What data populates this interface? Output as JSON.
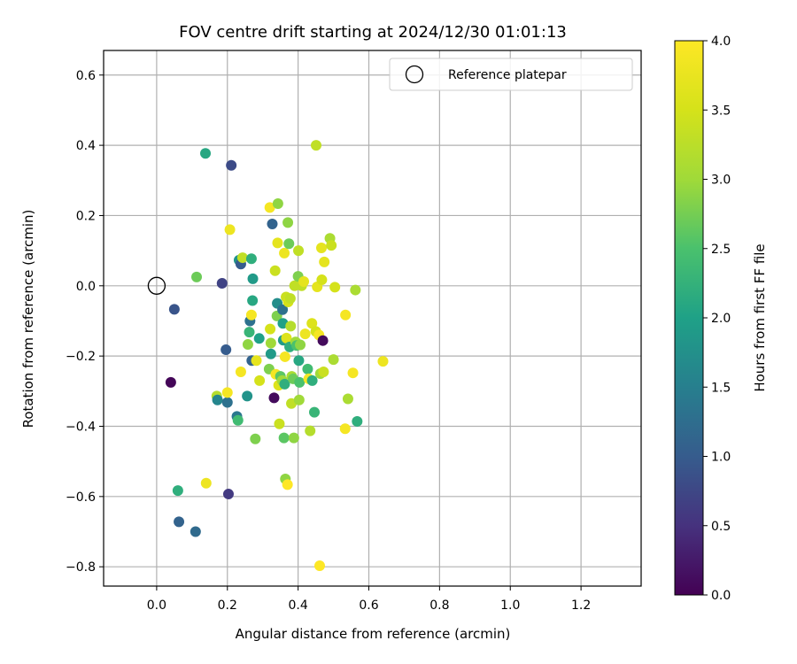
{
  "chart_data": {
    "type": "scatter",
    "title": "FOV centre drift starting at 2024/12/30 01:01:13",
    "xlabel": "Angular distance from reference (arcmin)",
    "ylabel": "Rotation from reference (arcmin)",
    "xlim": [
      -0.15,
      1.37
    ],
    "ylim": [
      -0.855,
      0.67
    ],
    "xticks": [
      0.0,
      0.2,
      0.4,
      0.6,
      0.8,
      1.0,
      1.2
    ],
    "xtick_labels": [
      "0.0",
      "0.2",
      "0.4",
      "0.6",
      "0.8",
      "1.0",
      "1.2"
    ],
    "yticks": [
      0.6,
      0.4,
      0.2,
      0.0,
      -0.2,
      -0.4,
      -0.6,
      -0.8
    ],
    "ytick_labels": [
      "0.6",
      "0.4",
      "0.2",
      "0.0",
      "−0.2",
      "−0.4",
      "−0.6",
      "−0.8"
    ],
    "grid": true,
    "legend": {
      "position": "upper right",
      "entries": [
        "Reference platepar"
      ]
    },
    "reference_point": {
      "x": 0.0,
      "y": 0.0,
      "label": "Reference platepar"
    },
    "colorbar": {
      "label": "Hours from first FF file",
      "range": [
        0.0,
        4.0
      ],
      "ticks": [
        0.0,
        0.5,
        1.0,
        1.5,
        2.0,
        2.5,
        3.0,
        3.5,
        4.0
      ],
      "tick_labels": [
        "0.0",
        "0.5",
        "1.0",
        "1.5",
        "2.0",
        "2.5",
        "3.0",
        "3.5",
        "4.0"
      ],
      "colormap": "viridis"
    },
    "points": [
      {
        "x": 0.04,
        "y": -0.275,
        "c": 0.05
      },
      {
        "x": 0.05,
        "y": -0.067,
        "c": 0.9
      },
      {
        "x": 0.06,
        "y": -0.583,
        "c": 2.2
      },
      {
        "x": 0.063,
        "y": -0.672,
        "c": 1.1
      },
      {
        "x": 0.11,
        "y": -0.7,
        "c": 1.2
      },
      {
        "x": 0.113,
        "y": 0.025,
        "c": 2.7
      },
      {
        "x": 0.138,
        "y": 0.377,
        "c": 2.1
      },
      {
        "x": 0.14,
        "y": -0.562,
        "c": 3.8
      },
      {
        "x": 0.17,
        "y": -0.314,
        "c": 3.2
      },
      {
        "x": 0.172,
        "y": -0.325,
        "c": 1.6
      },
      {
        "x": 0.185,
        "y": 0.007,
        "c": 0.7
      },
      {
        "x": 0.196,
        "y": -0.182,
        "c": 1.0
      },
      {
        "x": 0.2,
        "y": -0.332,
        "c": 1.3
      },
      {
        "x": 0.2,
        "y": -0.304,
        "c": 3.9
      },
      {
        "x": 0.203,
        "y": -0.593,
        "c": 0.6
      },
      {
        "x": 0.207,
        "y": 0.16,
        "c": 3.8
      },
      {
        "x": 0.211,
        "y": 0.343,
        "c": 0.8
      },
      {
        "x": 0.227,
        "y": -0.372,
        "c": 1.4
      },
      {
        "x": 0.23,
        "y": -0.383,
        "c": 2.4
      },
      {
        "x": 0.233,
        "y": 0.073,
        "c": 1.8
      },
      {
        "x": 0.238,
        "y": -0.245,
        "c": 3.9
      },
      {
        "x": 0.238,
        "y": 0.062,
        "c": 1.0
      },
      {
        "x": 0.243,
        "y": 0.08,
        "c": 3.3
      },
      {
        "x": 0.256,
        "y": -0.314,
        "c": 1.8
      },
      {
        "x": 0.258,
        "y": -0.167,
        "c": 2.9
      },
      {
        "x": 0.262,
        "y": -0.132,
        "c": 2.3
      },
      {
        "x": 0.264,
        "y": -0.1,
        "c": 1.3
      },
      {
        "x": 0.268,
        "y": 0.077,
        "c": 2.2
      },
      {
        "x": 0.268,
        "y": -0.083,
        "c": 3.9
      },
      {
        "x": 0.269,
        "y": -0.213,
        "c": 1.1
      },
      {
        "x": 0.271,
        "y": -0.042,
        "c": 2.1
      },
      {
        "x": 0.272,
        "y": 0.02,
        "c": 1.9
      },
      {
        "x": 0.279,
        "y": -0.436,
        "c": 2.8
      },
      {
        "x": 0.282,
        "y": -0.213,
        "c": 3.7
      },
      {
        "x": 0.29,
        "y": -0.15,
        "c": 2.0
      },
      {
        "x": 0.291,
        "y": -0.27,
        "c": 3.5
      },
      {
        "x": 0.318,
        "y": -0.237,
        "c": 2.8
      },
      {
        "x": 0.32,
        "y": 0.223,
        "c": 3.9
      },
      {
        "x": 0.321,
        "y": -0.123,
        "c": 3.5
      },
      {
        "x": 0.323,
        "y": -0.194,
        "c": 1.9
      },
      {
        "x": 0.323,
        "y": -0.163,
        "c": 3.0
      },
      {
        "x": 0.327,
        "y": 0.176,
        "c": 1.1
      },
      {
        "x": 0.332,
        "y": -0.319,
        "c": 0.1
      },
      {
        "x": 0.335,
        "y": 0.043,
        "c": 3.4
      },
      {
        "x": 0.337,
        "y": -0.252,
        "c": 3.9
      },
      {
        "x": 0.34,
        "y": -0.086,
        "c": 2.8
      },
      {
        "x": 0.341,
        "y": -0.05,
        "c": 1.7
      },
      {
        "x": 0.342,
        "y": 0.122,
        "c": 3.7
      },
      {
        "x": 0.343,
        "y": 0.234,
        "c": 2.9
      },
      {
        "x": 0.345,
        "y": -0.283,
        "c": 3.6
      },
      {
        "x": 0.347,
        "y": -0.393,
        "c": 3.4
      },
      {
        "x": 0.35,
        "y": -0.258,
        "c": 2.6
      },
      {
        "x": 0.355,
        "y": -0.27,
        "c": 3.0
      },
      {
        "x": 0.356,
        "y": -0.068,
        "c": 1.3
      },
      {
        "x": 0.357,
        "y": -0.107,
        "c": 2.0
      },
      {
        "x": 0.358,
        "y": -0.155,
        "c": 1.9
      },
      {
        "x": 0.36,
        "y": -0.433,
        "c": 2.6
      },
      {
        "x": 0.361,
        "y": 0.093,
        "c": 3.8
      },
      {
        "x": 0.362,
        "y": -0.28,
        "c": 2.2
      },
      {
        "x": 0.363,
        "y": -0.202,
        "c": 3.9
      },
      {
        "x": 0.364,
        "y": -0.55,
        "c": 2.9
      },
      {
        "x": 0.366,
        "y": -0.032,
        "c": 3.4
      },
      {
        "x": 0.367,
        "y": -0.149,
        "c": 3.6
      },
      {
        "x": 0.37,
        "y": -0.566,
        "c": 4.0
      },
      {
        "x": 0.371,
        "y": 0.18,
        "c": 2.9
      },
      {
        "x": 0.372,
        "y": -0.046,
        "c": 3.5
      },
      {
        "x": 0.374,
        "y": 0.12,
        "c": 2.7
      },
      {
        "x": 0.376,
        "y": -0.174,
        "c": 2.2
      },
      {
        "x": 0.378,
        "y": -0.036,
        "c": 3.3
      },
      {
        "x": 0.379,
        "y": -0.115,
        "c": 3.2
      },
      {
        "x": 0.381,
        "y": -0.335,
        "c": 3.3
      },
      {
        "x": 0.382,
        "y": -0.258,
        "c": 3.1
      },
      {
        "x": 0.386,
        "y": -0.265,
        "c": 2.7
      },
      {
        "x": 0.388,
        "y": -0.433,
        "c": 2.9
      },
      {
        "x": 0.39,
        "y": 0.0,
        "c": 3.3
      },
      {
        "x": 0.393,
        "y": -0.16,
        "c": 3.0
      },
      {
        "x": 0.396,
        "y": -0.17,
        "c": 2.5
      },
      {
        "x": 0.4,
        "y": 0.027,
        "c": 2.8
      },
      {
        "x": 0.401,
        "y": 0.1,
        "c": 3.3
      },
      {
        "x": 0.402,
        "y": -0.213,
        "c": 2.1
      },
      {
        "x": 0.403,
        "y": -0.325,
        "c": 3.0
      },
      {
        "x": 0.404,
        "y": -0.275,
        "c": 2.5
      },
      {
        "x": 0.406,
        "y": -0.168,
        "c": 2.9
      },
      {
        "x": 0.41,
        "y": 0.0,
        "c": 3.3
      },
      {
        "x": 0.416,
        "y": 0.012,
        "c": 3.7
      },
      {
        "x": 0.42,
        "y": -0.137,
        "c": 3.8
      },
      {
        "x": 0.427,
        "y": -0.237,
        "c": 2.4
      },
      {
        "x": 0.43,
        "y": -0.265,
        "c": 3.9
      },
      {
        "x": 0.434,
        "y": -0.413,
        "c": 3.2
      },
      {
        "x": 0.439,
        "y": -0.107,
        "c": 3.6
      },
      {
        "x": 0.44,
        "y": -0.27,
        "c": 2.2
      },
      {
        "x": 0.446,
        "y": -0.36,
        "c": 2.3
      },
      {
        "x": 0.45,
        "y": -0.13,
        "c": 3.5
      },
      {
        "x": 0.451,
        "y": 0.4,
        "c": 3.3
      },
      {
        "x": 0.454,
        "y": -0.003,
        "c": 3.7
      },
      {
        "x": 0.459,
        "y": -0.14,
        "c": 3.9
      },
      {
        "x": 0.461,
        "y": -0.797,
        "c": 4.0
      },
      {
        "x": 0.463,
        "y": -0.25,
        "c": 3.0
      },
      {
        "x": 0.466,
        "y": 0.108,
        "c": 3.7
      },
      {
        "x": 0.467,
        "y": 0.017,
        "c": 3.5
      },
      {
        "x": 0.47,
        "y": -0.156,
        "c": 0.1
      },
      {
        "x": 0.472,
        "y": -0.245,
        "c": 3.4
      },
      {
        "x": 0.474,
        "y": 0.068,
        "c": 3.7
      },
      {
        "x": 0.49,
        "y": 0.135,
        "c": 3.1
      },
      {
        "x": 0.494,
        "y": 0.115,
        "c": 3.4
      },
      {
        "x": 0.5,
        "y": -0.21,
        "c": 3.1
      },
      {
        "x": 0.504,
        "y": -0.004,
        "c": 3.5
      },
      {
        "x": 0.533,
        "y": -0.407,
        "c": 3.9
      },
      {
        "x": 0.534,
        "y": -0.083,
        "c": 3.9
      },
      {
        "x": 0.541,
        "y": -0.322,
        "c": 3.1
      },
      {
        "x": 0.555,
        "y": -0.248,
        "c": 3.9
      },
      {
        "x": 0.562,
        "y": -0.012,
        "c": 3.1
      },
      {
        "x": 0.567,
        "y": -0.386,
        "c": 2.2
      },
      {
        "x": 0.64,
        "y": -0.215,
        "c": 3.8
      }
    ]
  }
}
